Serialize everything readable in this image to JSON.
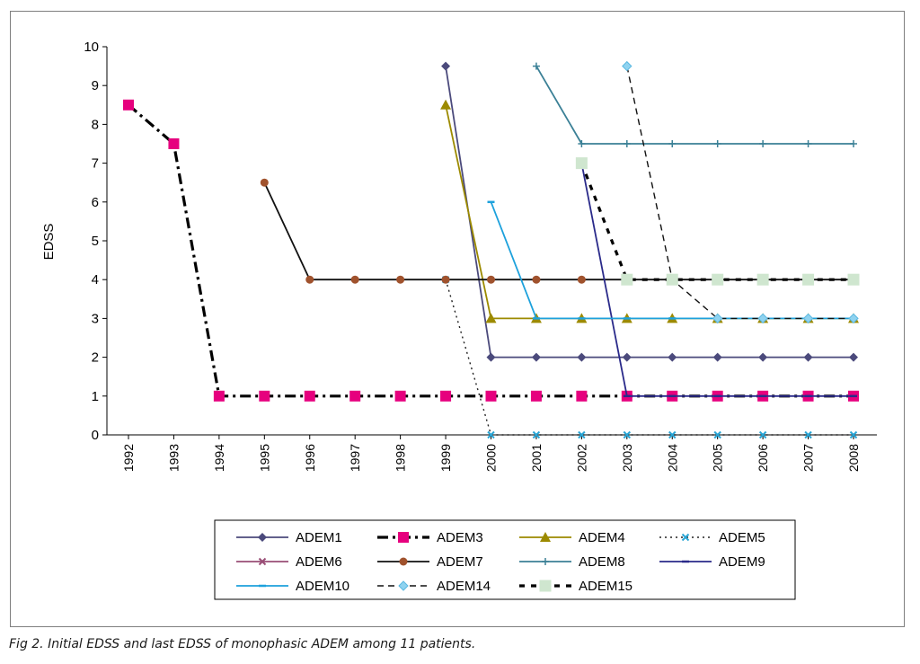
{
  "caption": "Fig 2. Initial EDSS and last EDSS of monophasic ADEM among 11 patients.",
  "chart_data": {
    "type": "line",
    "title": "",
    "xlabel": "",
    "ylabel": "EDSS",
    "xlim": [
      1992,
      2008
    ],
    "ylim": [
      0,
      10
    ],
    "x_ticks": [
      "1992",
      "1993",
      "1994",
      "1995",
      "1996",
      "1997",
      "1998",
      "1999",
      "2000",
      "2001",
      "2002",
      "2003",
      "2004",
      "2005",
      "2006",
      "2007",
      "2008"
    ],
    "y_ticks": [
      "0",
      "1",
      "2",
      "3",
      "4",
      "5",
      "6",
      "7",
      "8",
      "9",
      "10"
    ],
    "grid": false,
    "legend_position": "bottom",
    "series": [
      {
        "name": "ADEM1",
        "color": "#4b4a7c",
        "dash": "solid",
        "marker": "diamond",
        "x": [
          1999,
          2000,
          2001,
          2002,
          2003,
          2004,
          2005,
          2006,
          2007,
          2008
        ],
        "y": [
          9.5,
          2,
          2,
          2,
          2,
          2,
          2,
          2,
          2,
          2
        ]
      },
      {
        "name": "ADEM3",
        "color": "#000000",
        "marker_color": "#e6007e",
        "dash": "dashdot",
        "marker": "square",
        "x": [
          1992,
          1993,
          1994,
          1995,
          1996,
          1997,
          1998,
          1999,
          2000,
          2001,
          2002,
          2003,
          2004,
          2005,
          2006,
          2007,
          2008
        ],
        "y": [
          8.5,
          7.5,
          1,
          1,
          1,
          1,
          1,
          1,
          1,
          1,
          1,
          1,
          1,
          1,
          1,
          1,
          1
        ]
      },
      {
        "name": "ADEM4",
        "color": "#9c8a00",
        "dash": "solid",
        "marker": "triangle",
        "x": [
          1999,
          2000,
          2001,
          2002,
          2003,
          2004,
          2005,
          2006,
          2007,
          2008
        ],
        "y": [
          8.5,
          3,
          3,
          3,
          3,
          3,
          3,
          3,
          3,
          3
        ]
      },
      {
        "name": "ADEM5",
        "color": "#222222",
        "marker_color": "#2aa6d6",
        "dash": "dotted",
        "marker": "x",
        "x": [
          1999,
          2000,
          2001,
          2002,
          2003,
          2004,
          2005,
          2006,
          2007,
          2008
        ],
        "y": [
          4,
          0,
          0,
          0,
          0,
          0,
          0,
          0,
          0,
          0
        ]
      },
      {
        "name": "ADEM6",
        "color": "#9a4e76",
        "dash": "solid",
        "marker": "x",
        "x": [],
        "y": []
      },
      {
        "name": "ADEM7",
        "color": "#111111",
        "marker_color": "#a0522d",
        "dash": "solid",
        "marker": "circle",
        "x": [
          1995,
          1996,
          1997,
          1998,
          1999,
          2000,
          2001,
          2002,
          2003,
          2004,
          2005,
          2006,
          2007,
          2008
        ],
        "y": [
          6.5,
          4,
          4,
          4,
          4,
          4,
          4,
          4,
          4,
          4,
          4,
          4,
          4,
          4
        ]
      },
      {
        "name": "ADEM8",
        "color": "#3b8096",
        "dash": "solid",
        "marker": "plus",
        "x": [
          2001,
          2002,
          2003,
          2004,
          2005,
          2006,
          2007,
          2008
        ],
        "y": [
          9.5,
          7.5,
          7.5,
          7.5,
          7.5,
          7.5,
          7.5,
          7.5
        ]
      },
      {
        "name": "ADEM9",
        "color": "#2a2a8a",
        "dash": "solid",
        "marker": "dash",
        "x": [
          2002,
          2003,
          2004,
          2005,
          2006,
          2007,
          2008
        ],
        "y": [
          7,
          1,
          1,
          1,
          1,
          1,
          1
        ]
      },
      {
        "name": "ADEM10",
        "color": "#1da1dc",
        "dash": "solid",
        "marker": "dash",
        "x": [
          2000,
          2001,
          2002,
          2003,
          2004,
          2005,
          2006,
          2007,
          2008
        ],
        "y": [
          6,
          3,
          3,
          3,
          3,
          3,
          3,
          3,
          3
        ]
      },
      {
        "name": "ADEM14",
        "color": "#111111",
        "marker_color": "#8fd3f0",
        "dash": "dashed",
        "marker": "diamond-open",
        "x": [
          2003,
          2004,
          2005,
          2006,
          2007,
          2008
        ],
        "y": [
          9.5,
          4,
          3,
          3,
          3,
          3
        ]
      },
      {
        "name": "ADEM15",
        "color": "#000000",
        "marker_color": "#cfe6cf",
        "dash": "heavydash",
        "marker": "square-light",
        "x": [
          2002,
          2003,
          2004,
          2005,
          2006,
          2007,
          2008
        ],
        "y": [
          7,
          4,
          4,
          4,
          4,
          4,
          4
        ]
      }
    ]
  }
}
